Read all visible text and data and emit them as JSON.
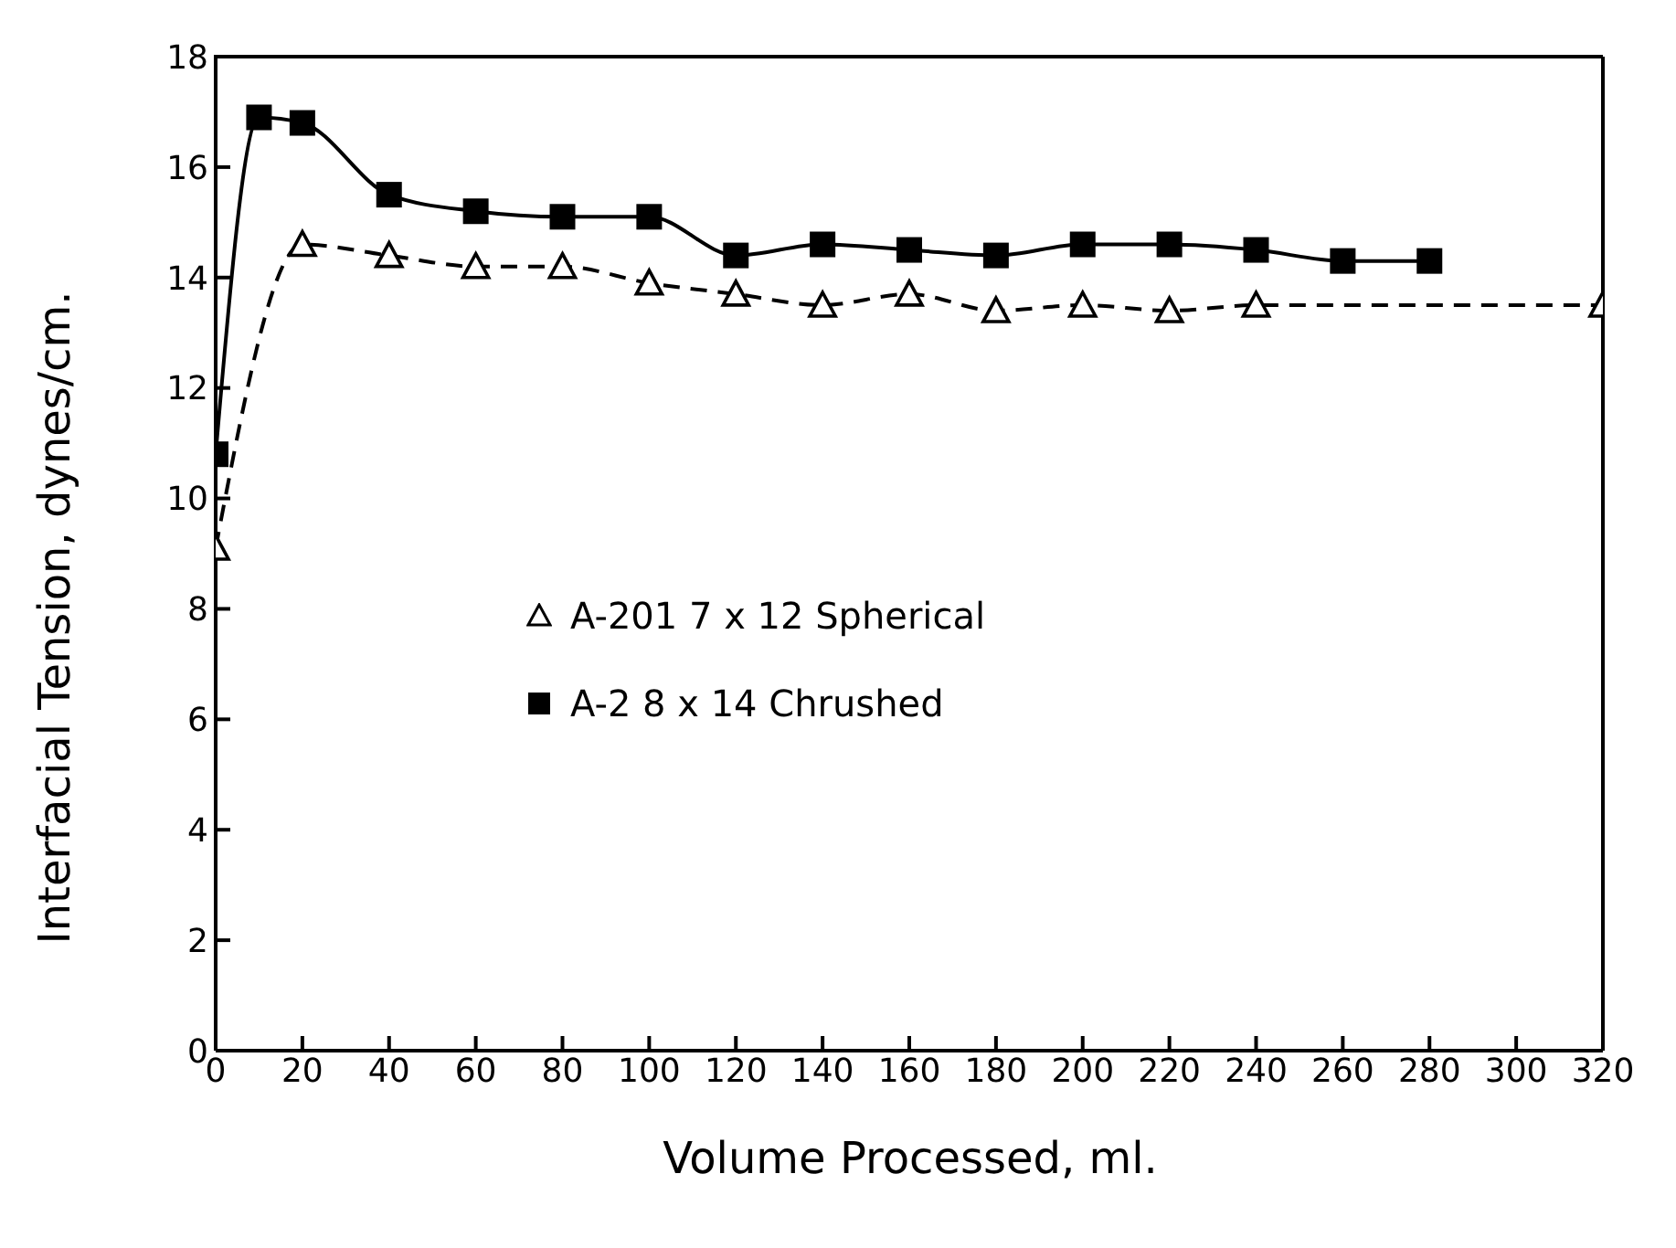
{
  "chart_data": {
    "type": "line",
    "xlabel": "Volume Processed, ml.",
    "ylabel": "Interfacial Tension, dynes/cm.",
    "xlim": [
      0,
      320
    ],
    "xticks": [
      0,
      20,
      40,
      60,
      80,
      100,
      120,
      140,
      160,
      180,
      200,
      220,
      240,
      260,
      280,
      300,
      320
    ],
    "ylim": [
      0,
      18
    ],
    "yticks": [
      0,
      2,
      4,
      6,
      8,
      10,
      12,
      14,
      16,
      18
    ],
    "legend": "left",
    "series": [
      {
        "name": "A-201 7 x 12 Spherical",
        "color": "#000000",
        "marker": "triangle",
        "line_style": "dashed",
        "x": [
          0,
          20,
          40,
          60,
          80,
          100,
          120,
          140,
          160,
          180,
          200,
          220,
          240,
          320
        ],
        "values": [
          9.1,
          14.6,
          14.4,
          14.2,
          14.2,
          13.9,
          13.7,
          13.5,
          13.7,
          13.4,
          13.5,
          13.4,
          13.5,
          13.5
        ]
      },
      {
        "name": "A-2 8 x 14 Chrushed",
        "color": "#000000",
        "marker": "square",
        "line_style": "solid",
        "x": [
          0,
          10,
          20,
          40,
          60,
          80,
          100,
          120,
          140,
          160,
          180,
          200,
          220,
          240,
          260,
          280
        ],
        "values": [
          10.8,
          16.9,
          16.8,
          15.5,
          15.2,
          15.1,
          15.1,
          14.4,
          14.6,
          14.5,
          14.4,
          14.6,
          14.6,
          14.5,
          14.3,
          14.3
        ]
      }
    ]
  }
}
